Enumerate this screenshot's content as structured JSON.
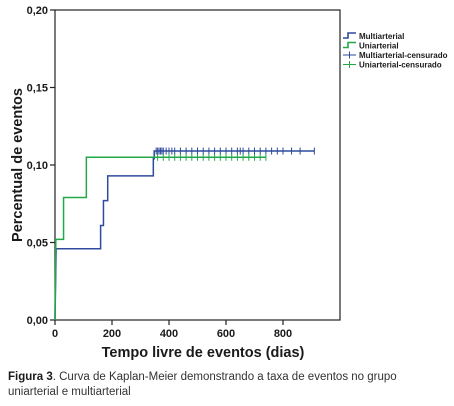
{
  "chart_data": {
    "type": "line",
    "step": true,
    "xlabel": "Tempo livre de eventos (dias)",
    "ylabel": "Percentual de eventos",
    "xlim": [
      0,
      1000
    ],
    "ylim": [
      0,
      0.2
    ],
    "xticks": [
      0,
      200,
      400,
      600,
      800
    ],
    "yticks": [
      0,
      0.05,
      0.1,
      0.15,
      0.2
    ],
    "xtick_labels": [
      "0",
      "200",
      "400",
      "600",
      "800"
    ],
    "ytick_labels": [
      "0,00",
      "0,05",
      "0,10",
      "0,15",
      "0,20"
    ],
    "grid": false,
    "legend_position": "top-right",
    "series": [
      {
        "name": "Multiarterial",
        "color": "#2f4a9e",
        "steps": [
          [
            0,
            0.0
          ],
          [
            4,
            0.046
          ],
          [
            160,
            0.046
          ],
          [
            160,
            0.061
          ],
          [
            170,
            0.061
          ],
          [
            170,
            0.077
          ],
          [
            185,
            0.077
          ],
          [
            185,
            0.093
          ],
          [
            345,
            0.093
          ],
          [
            345,
            0.104
          ],
          [
            348,
            0.104
          ],
          [
            348,
            0.109
          ],
          [
            910,
            0.109
          ]
        ],
        "censored": [
          355,
          360,
          365,
          370,
          375,
          380,
          390,
          400,
          410,
          420,
          440,
          460,
          480,
          500,
          520,
          540,
          560,
          580,
          600,
          620,
          640,
          650,
          660,
          680,
          700,
          720,
          740,
          760,
          780,
          800,
          830,
          860,
          910
        ]
      },
      {
        "name": "Uniarterial",
        "color": "#22a84a",
        "steps": [
          [
            0,
            0.0
          ],
          [
            3,
            0.052
          ],
          [
            30,
            0.052
          ],
          [
            30,
            0.079
          ],
          [
            110,
            0.079
          ],
          [
            110,
            0.105
          ],
          [
            740,
            0.105
          ]
        ],
        "censored": [
          360,
          380,
          400,
          420,
          440,
          460,
          480,
          500,
          520,
          540,
          560,
          580,
          600,
          620,
          640,
          660,
          680,
          700,
          720,
          740
        ]
      }
    ],
    "legend": [
      {
        "label": "Multiarterial",
        "kind": "line",
        "color": "#2f4a9e"
      },
      {
        "label": "Uniarterial",
        "kind": "line",
        "color": "#22a84a"
      },
      {
        "label": "Multiarterial-censurado",
        "kind": "censor",
        "color": "#2f4a9e"
      },
      {
        "label": "Uniarterial-censurado",
        "kind": "censor",
        "color": "#22a84a"
      }
    ]
  },
  "caption": {
    "label": "Figura 3",
    "text": ". Curva de Kaplan-Meier demonstrando a taxa de eventos no grupo uniarterial e multiarterial"
  }
}
